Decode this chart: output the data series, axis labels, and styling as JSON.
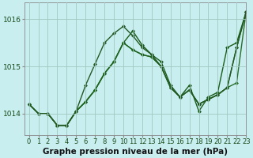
{
  "xlabel": "Graphe pression niveau de la mer (hPa)",
  "ylabel": "",
  "background_color": "#c8eef0",
  "grid_color": "#a0c8c0",
  "xlim": [
    -0.5,
    23
  ],
  "ylim": [
    1013.55,
    1016.35
  ],
  "yticks": [
    1014,
    1015,
    1016
  ],
  "xticks": [
    0,
    1,
    2,
    3,
    4,
    5,
    6,
    7,
    8,
    9,
    10,
    11,
    12,
    13,
    14,
    15,
    16,
    17,
    18,
    19,
    20,
    21,
    22,
    23
  ],
  "series": [
    [
      1014.2,
      1014.0,
      1014.0,
      1013.75,
      1013.75,
      1014.05,
      1014.25,
      1014.5,
      1014.85,
      1015.1,
      1015.5,
      1015.75,
      1015.45,
      1015.25,
      1015.1,
      1014.6,
      1014.35,
      1014.6,
      1014.05,
      1014.35,
      1014.45,
      1015.4,
      1015.5,
      1016.15
    ],
    [
      1014.2,
      1014.0,
      1014.0,
      1013.75,
      1013.75,
      1014.05,
      1014.25,
      1014.5,
      1014.85,
      1015.1,
      1015.5,
      1015.35,
      1015.25,
      1015.2,
      1015.0,
      1014.55,
      1014.35,
      1014.5,
      1014.2,
      1014.3,
      1014.4,
      1014.55,
      1014.65,
      1016.15
    ],
    [
      1014.2,
      1014.0,
      1014.0,
      1013.75,
      1013.75,
      1014.05,
      1014.25,
      1014.5,
      1014.85,
      1015.1,
      1015.5,
      1015.35,
      1015.25,
      1015.2,
      1015.0,
      1014.55,
      1014.35,
      1014.5,
      1014.2,
      1014.3,
      1014.4,
      1014.55,
      1015.4,
      1016.15
    ],
    [
      1014.2,
      1014.0,
      1014.0,
      1013.75,
      1013.75,
      1014.05,
      1014.6,
      1015.05,
      1015.5,
      1015.7,
      1015.85,
      1015.65,
      1015.4,
      1015.25,
      1015.0,
      1014.55,
      1014.35,
      1014.5,
      1014.2,
      1014.3,
      1014.4,
      1014.55,
      1015.4,
      1016.15
    ]
  ],
  "line_colors": [
    "#1a5c1a",
    "#2a6e2a",
    "#1e641e",
    "#245924"
  ],
  "marker": "D",
  "markersize": 2.0,
  "linewidth": 1.0,
  "xlabel_fontsize": 7.5,
  "tick_fontsize": 6.0,
  "ytick_fontsize": 6.5
}
